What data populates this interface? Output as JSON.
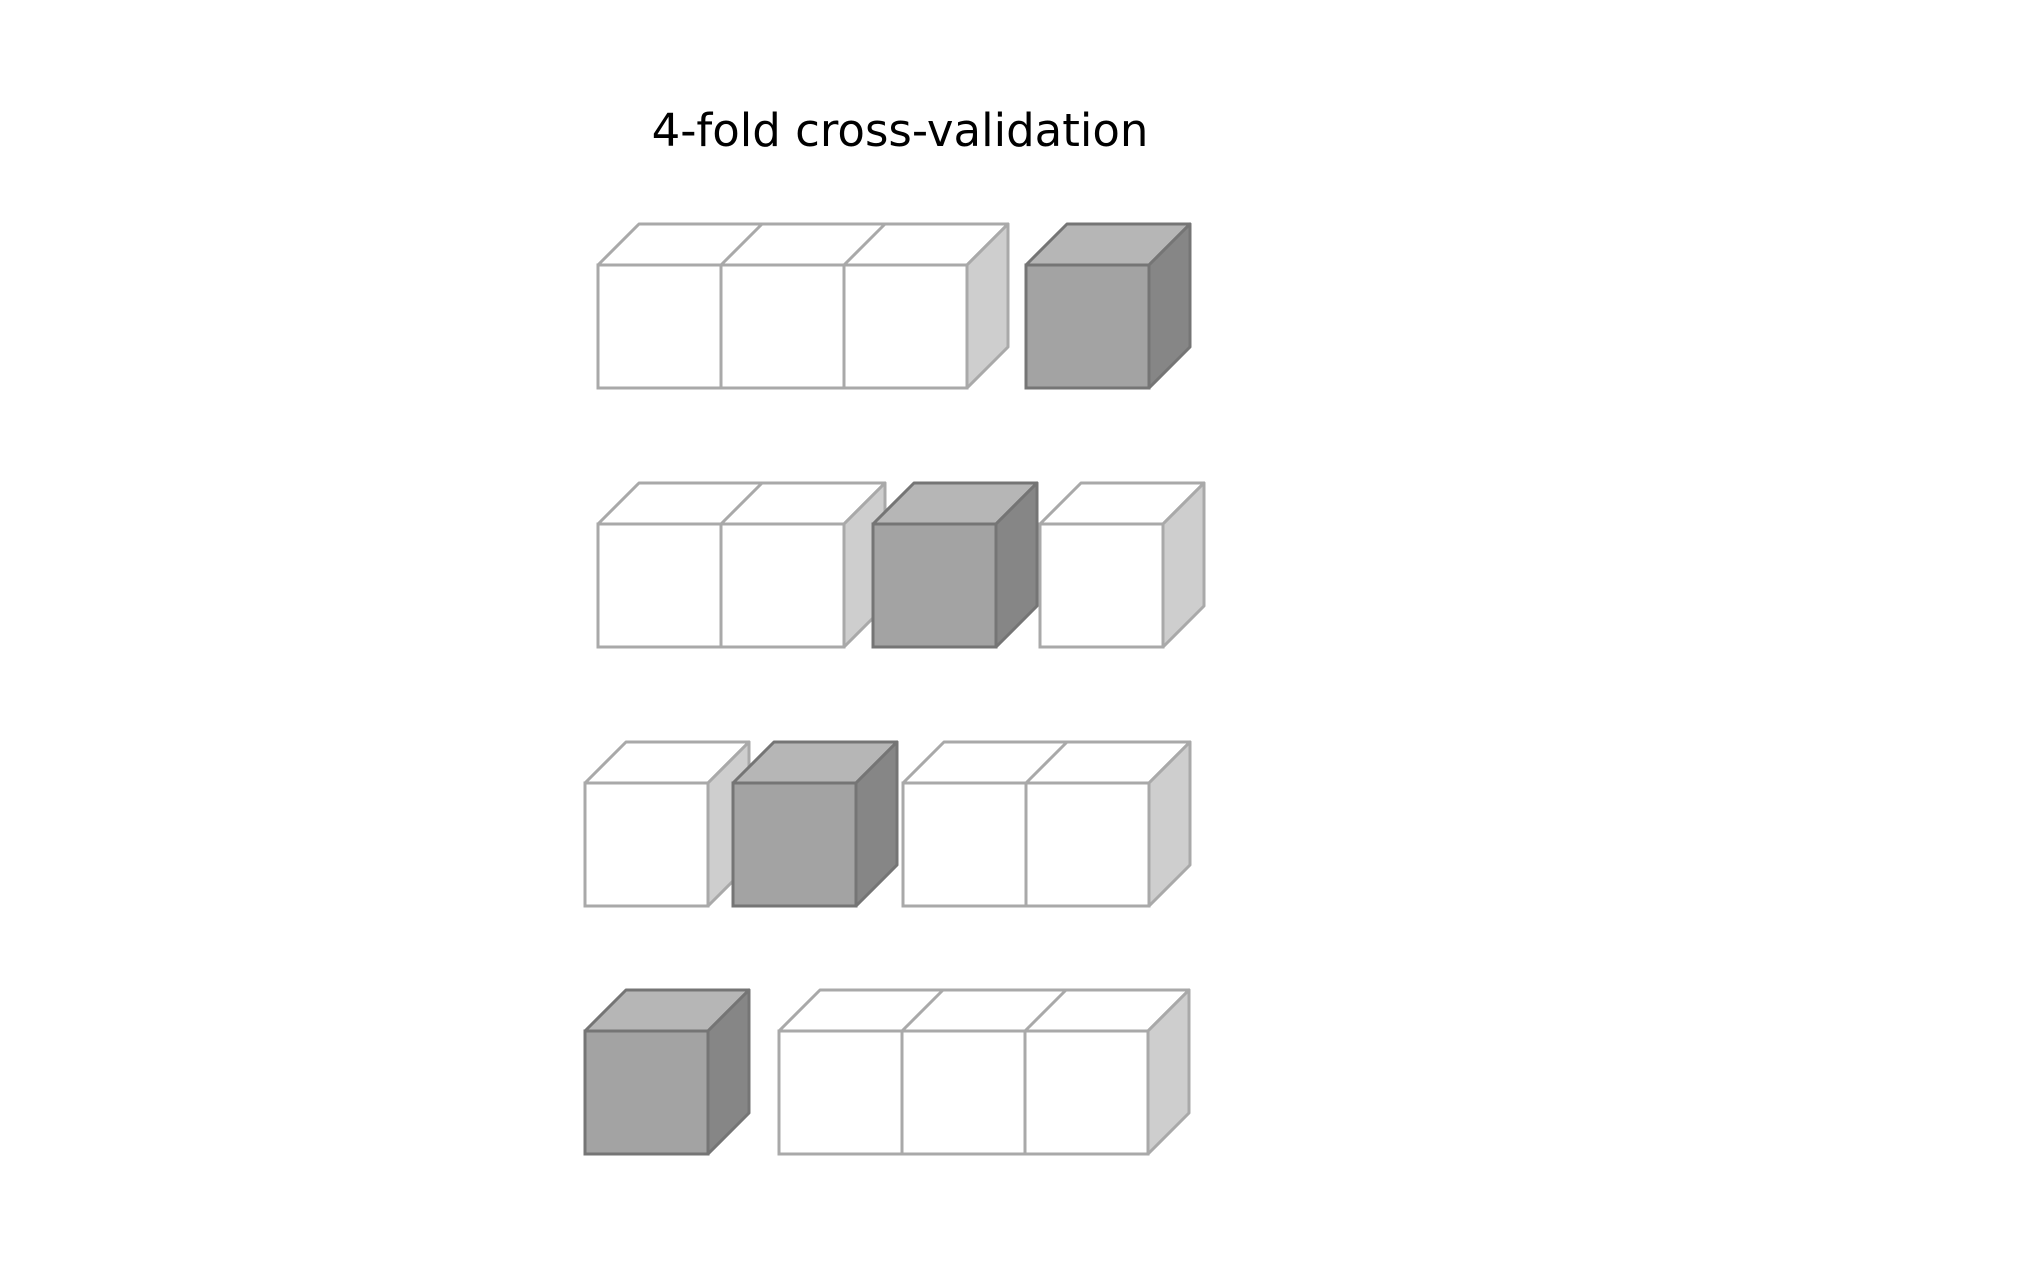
{
  "title": "4-fold cross-validation",
  "colors": {
    "train_front": "#ffffff",
    "train_top": "#ffffff",
    "train_side": "#cecece",
    "train_stroke": "#a9a9a9",
    "test_front": "#a3a3a3",
    "test_top": "#b6b6b6",
    "test_side": "#868686",
    "test_stroke": "#757575"
  },
  "folds": [
    {
      "groups": [
        {
          "role": "train",
          "count": 3
        },
        {
          "role": "test",
          "count": 1
        }
      ]
    },
    {
      "groups": [
        {
          "role": "train",
          "count": 2
        },
        {
          "role": "test",
          "count": 1
        },
        {
          "role": "train",
          "count": 1
        }
      ]
    },
    {
      "groups": [
        {
          "role": "train",
          "count": 1
        },
        {
          "role": "test",
          "count": 1
        },
        {
          "role": "train",
          "count": 2
        }
      ]
    },
    {
      "groups": [
        {
          "role": "test",
          "count": 1
        },
        {
          "role": "train",
          "count": 3
        }
      ]
    }
  ]
}
